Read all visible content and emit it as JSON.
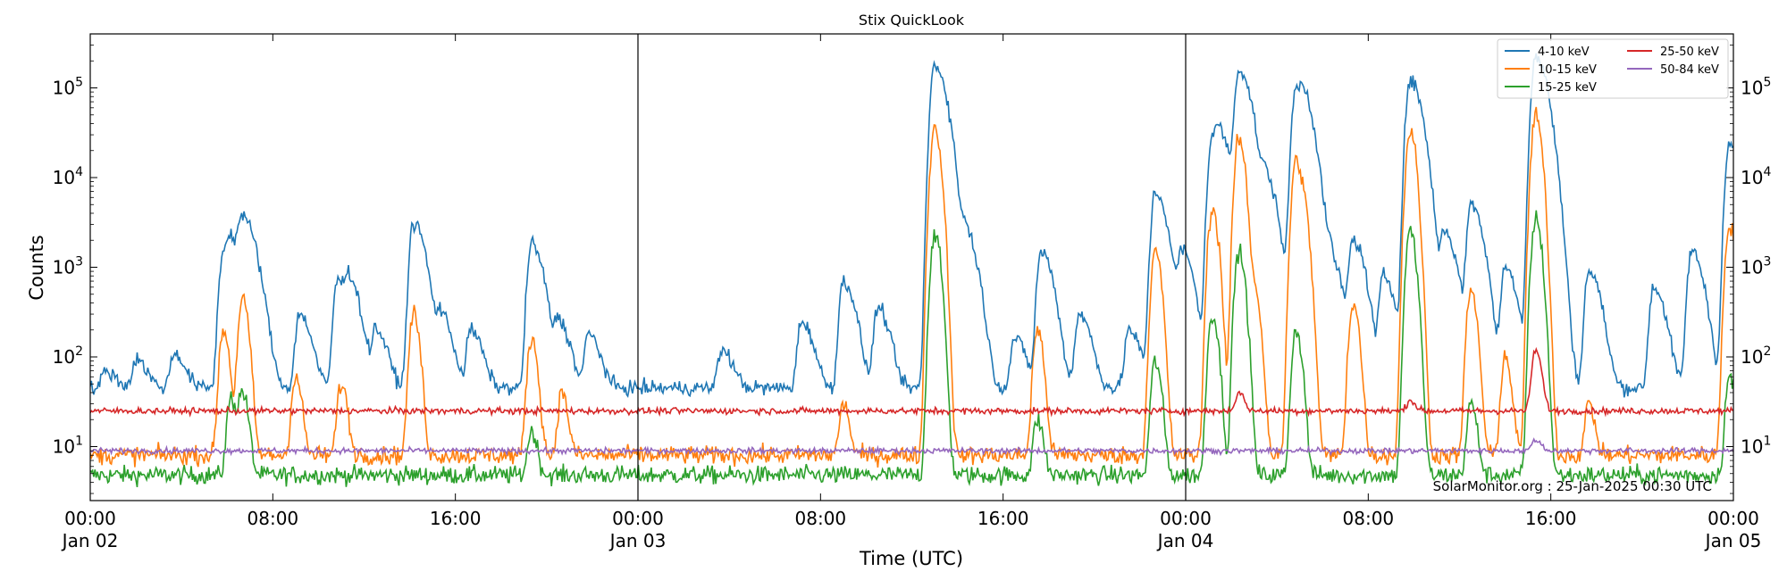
{
  "chart_data": {
    "type": "line",
    "title": "Stix QuickLook",
    "xlabel": "Time (UTC)",
    "ylabel": "Counts",
    "yscale": "log",
    "xlim": [
      "2025-01-02T00:00",
      "2025-01-05T00:00"
    ],
    "ylim": [
      2.5,
      400000
    ],
    "grid": false,
    "legend_position": "top-right",
    "annotation": "SolarMonitor.org : 25-Jan-2025 00:30 UTC",
    "day_separators": [
      "2025-01-03T00:00",
      "2025-01-04T00:00"
    ],
    "x_ticks": [
      {
        "time": "2025-01-02T00:00",
        "line1": "00:00",
        "line2": "Jan 02"
      },
      {
        "time": "2025-01-02T08:00",
        "line1": "08:00",
        "line2": ""
      },
      {
        "time": "2025-01-02T16:00",
        "line1": "16:00",
        "line2": ""
      },
      {
        "time": "2025-01-03T00:00",
        "line1": "00:00",
        "line2": "Jan 03"
      },
      {
        "time": "2025-01-03T08:00",
        "line1": "08:00",
        "line2": ""
      },
      {
        "time": "2025-01-03T16:00",
        "line1": "16:00",
        "line2": ""
      },
      {
        "time": "2025-01-04T00:00",
        "line1": "00:00",
        "line2": "Jan 04"
      },
      {
        "time": "2025-01-04T08:00",
        "line1": "08:00",
        "line2": ""
      },
      {
        "time": "2025-01-04T16:00",
        "line1": "16:00",
        "line2": ""
      },
      {
        "time": "2025-01-05T00:00",
        "line1": "00:00",
        "line2": "Jan 05"
      }
    ],
    "y_ticks": [
      {
        "value": 10,
        "base": "10",
        "exp": "1"
      },
      {
        "value": 100,
        "base": "10",
        "exp": "2"
      },
      {
        "value": 1000,
        "base": "10",
        "exp": "3"
      },
      {
        "value": 10000,
        "base": "10",
        "exp": "4"
      },
      {
        "value": 100000,
        "base": "10",
        "exp": "5"
      }
    ],
    "series": [
      {
        "name": "4-10 keV",
        "color": "#1f77b4",
        "baseline": 45,
        "noise": 0.08,
        "peaks": [
          [
            "2025-01-02T00:40",
            70
          ],
          [
            "2025-01-02T02:00",
            95
          ],
          [
            "2025-01-02T03:40",
            110
          ],
          [
            "2025-01-02T05:50",
            1500
          ],
          [
            "2025-01-02T06:10",
            1300
          ],
          [
            "2025-01-02T06:40",
            3200
          ],
          [
            "2025-01-02T07:10",
            500
          ],
          [
            "2025-01-02T09:10",
            300
          ],
          [
            "2025-01-02T10:50",
            700
          ],
          [
            "2025-01-02T11:20",
            600
          ],
          [
            "2025-01-02T12:30",
            200
          ],
          [
            "2025-01-02T14:10",
            3100
          ],
          [
            "2025-01-02T15:20",
            300
          ],
          [
            "2025-01-02T16:40",
            200
          ],
          [
            "2025-01-02T19:20",
            1800
          ],
          [
            "2025-01-02T20:30",
            250
          ],
          [
            "2025-01-02T21:50",
            180
          ],
          [
            "2025-01-03T03:40",
            120
          ],
          [
            "2025-01-03T07:10",
            250
          ],
          [
            "2025-01-03T09:00",
            700
          ],
          [
            "2025-01-03T10:30",
            350
          ],
          [
            "2025-01-03T13:00",
            180000
          ],
          [
            "2025-01-03T14:20",
            2500
          ],
          [
            "2025-01-03T16:30",
            160
          ],
          [
            "2025-01-03T17:40",
            1500
          ],
          [
            "2025-01-03T19:20",
            300
          ],
          [
            "2025-01-03T21:30",
            200
          ],
          [
            "2025-01-03T22:40",
            6800
          ],
          [
            "2025-01-03T23:50",
            1500
          ],
          [
            "2025-01-04T01:10",
            28000
          ],
          [
            "2025-01-04T01:30",
            18000
          ],
          [
            "2025-01-04T02:20",
            160000
          ],
          [
            "2025-01-04T03:00",
            3000
          ],
          [
            "2025-01-04T03:30",
            9000
          ],
          [
            "2025-01-04T04:50",
            95000
          ],
          [
            "2025-01-04T05:10",
            40000
          ],
          [
            "2025-01-04T06:20",
            1200
          ],
          [
            "2025-01-04T07:20",
            2000
          ],
          [
            "2025-01-04T08:40",
            800
          ],
          [
            "2025-01-04T09:50",
            120000
          ],
          [
            "2025-01-04T11:20",
            2500
          ],
          [
            "2025-01-04T12:30",
            5000
          ],
          [
            "2025-01-04T14:00",
            1000
          ],
          [
            "2025-01-04T15:20",
            220000
          ],
          [
            "2025-01-04T17:40",
            900
          ],
          [
            "2025-01-04T20:30",
            600
          ],
          [
            "2025-01-04T22:10",
            1500
          ],
          [
            "2025-01-04T23:50",
            23000
          ]
        ]
      },
      {
        "name": "10-15 keV",
        "color": "#ff7f0e",
        "baseline": 8,
        "noise": 0.1,
        "peaks": [
          [
            "2025-01-02T05:50",
            200
          ],
          [
            "2025-01-02T06:40",
            450
          ],
          [
            "2025-01-02T09:00",
            60
          ],
          [
            "2025-01-02T11:00",
            50
          ],
          [
            "2025-01-02T14:10",
            300
          ],
          [
            "2025-01-02T19:20",
            160
          ],
          [
            "2025-01-02T20:40",
            40
          ],
          [
            "2025-01-03T09:00",
            30
          ],
          [
            "2025-01-03T13:00",
            36000
          ],
          [
            "2025-01-03T17:30",
            200
          ],
          [
            "2025-01-03T22:40",
            1500
          ],
          [
            "2025-01-04T01:10",
            4500
          ],
          [
            "2025-01-04T02:20",
            27000
          ],
          [
            "2025-01-04T03:00",
            600
          ],
          [
            "2025-01-04T04:50",
            15000
          ],
          [
            "2025-01-04T05:10",
            3500
          ],
          [
            "2025-01-04T07:20",
            400
          ],
          [
            "2025-01-04T09:50",
            33000
          ],
          [
            "2025-01-04T12:30",
            550
          ],
          [
            "2025-01-04T14:00",
            100
          ],
          [
            "2025-01-04T15:20",
            48000
          ],
          [
            "2025-01-04T17:40",
            30
          ],
          [
            "2025-01-04T23:50",
            3000
          ]
        ]
      },
      {
        "name": "15-25 keV",
        "color": "#2ca02c",
        "baseline": 4.8,
        "noise": 0.1,
        "peaks": [
          [
            "2025-01-02T06:10",
            35
          ],
          [
            "2025-01-02T06:40",
            40
          ],
          [
            "2025-01-02T19:20",
            15
          ],
          [
            "2025-01-03T13:00",
            2300
          ],
          [
            "2025-01-03T17:30",
            20
          ],
          [
            "2025-01-03T22:40",
            90
          ],
          [
            "2025-01-04T01:10",
            300
          ],
          [
            "2025-01-04T02:20",
            1500
          ],
          [
            "2025-01-04T04:50",
            200
          ],
          [
            "2025-01-04T09:50",
            2500
          ],
          [
            "2025-01-04T12:30",
            30
          ],
          [
            "2025-01-04T15:20",
            3500
          ],
          [
            "2025-01-04T23:50",
            60
          ]
        ]
      },
      {
        "name": "25-50 keV",
        "color": "#d62728",
        "baseline": 25,
        "noise": 0.035,
        "peaks": [
          [
            "2025-01-04T02:20",
            40
          ],
          [
            "2025-01-04T09:50",
            33
          ],
          [
            "2025-01-04T15:20",
            120
          ]
        ]
      },
      {
        "name": "50-84 keV",
        "color": "#9467bd",
        "baseline": 9,
        "noise": 0.03,
        "peaks": [
          [
            "2025-01-04T15:20",
            12
          ]
        ]
      }
    ]
  }
}
